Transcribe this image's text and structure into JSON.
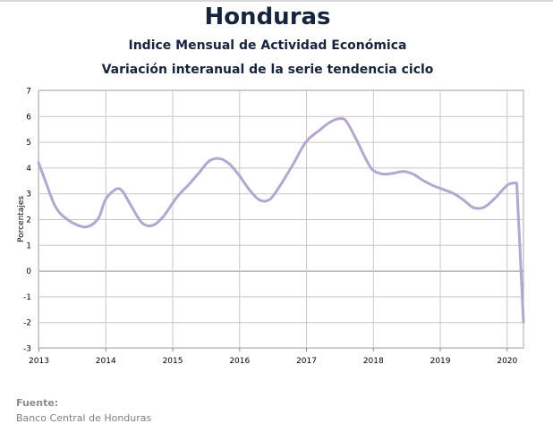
{
  "title": "Honduras",
  "subtitle1": "Indice Mensual de  Actividad Económica",
  "subtitle2": "Variación interanual de la serie tendencia ciclo",
  "source": {
    "label": "Fuente:",
    "text": "Banco Central de Honduras"
  },
  "chart_data": {
    "type": "line",
    "ylabel": "Porcentajes",
    "ylim": [
      -3,
      7
    ],
    "yticks": [
      7,
      6,
      5,
      4,
      3,
      2,
      1,
      0,
      -1,
      -2,
      -3
    ],
    "xlim": [
      2013,
      2020.25
    ],
    "xticks": [
      "2013",
      "2014",
      "2015",
      "2016",
      "2017",
      "2018",
      "2019",
      "2020"
    ],
    "grid": true,
    "line_color": "#b4a7cf",
    "series": [
      {
        "x": [
          2013.0,
          2013.1,
          2013.25,
          2013.4,
          2013.6,
          2013.75,
          2013.9,
          2014.0,
          2014.15,
          2014.25,
          2014.4,
          2014.55,
          2014.7,
          2014.85,
          2015.0,
          2015.1,
          2015.25,
          2015.4,
          2015.55,
          2015.7,
          2015.85,
          2016.0,
          2016.15,
          2016.3,
          2016.45,
          2016.6,
          2016.8,
          2017.0,
          2017.2,
          2017.35,
          2017.5,
          2017.6,
          2017.75,
          2017.9,
          2018.0,
          2018.15,
          2018.3,
          2018.45,
          2018.6,
          2018.75,
          2018.9,
          2019.0,
          2019.2,
          2019.35,
          2019.5,
          2019.65,
          2019.8,
          2020.0,
          2020.1,
          2020.15,
          2020.25
        ],
        "y": [
          4.2,
          3.5,
          2.5,
          2.05,
          1.75,
          1.72,
          2.05,
          2.75,
          3.15,
          3.1,
          2.45,
          1.85,
          1.75,
          2.05,
          2.6,
          2.95,
          3.35,
          3.8,
          4.25,
          4.35,
          4.15,
          3.7,
          3.15,
          2.75,
          2.75,
          3.25,
          4.1,
          5.0,
          5.45,
          5.75,
          5.9,
          5.8,
          5.1,
          4.3,
          3.9,
          3.75,
          3.78,
          3.85,
          3.75,
          3.5,
          3.3,
          3.2,
          3.0,
          2.75,
          2.45,
          2.45,
          2.75,
          3.3,
          3.4,
          3.4,
          -2.0
        ]
      }
    ]
  }
}
